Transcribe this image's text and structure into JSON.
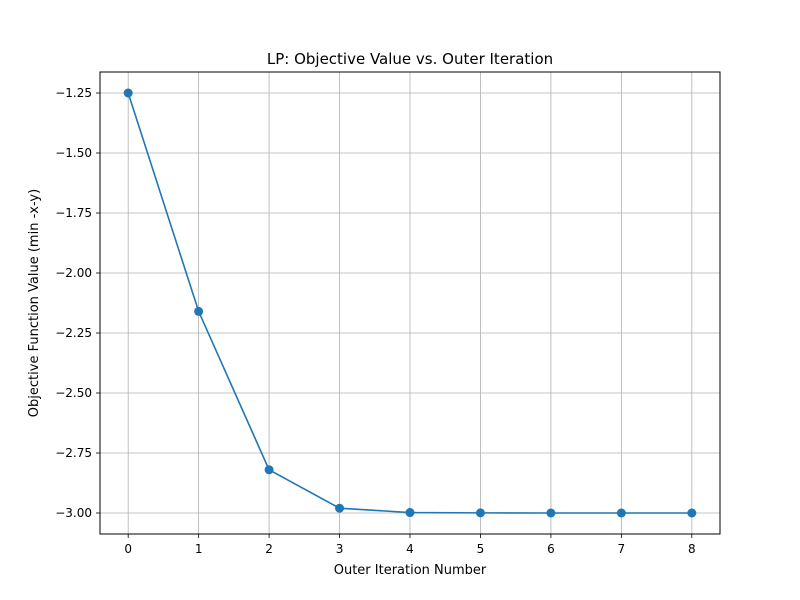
{
  "chart_data": {
    "type": "line",
    "title": "LP: Objective Value vs. Outer Iteration",
    "xlabel": "Outer Iteration Number",
    "ylabel": "Objective Function Value (min -x-y)",
    "x": [
      0,
      1,
      2,
      3,
      4,
      5,
      6,
      7,
      8
    ],
    "series": [
      {
        "values": [
          -1.25,
          -2.16,
          -2.82,
          -2.98,
          -2.998,
          -2.9995,
          -3.0,
          -3.0,
          -3.0
        ],
        "marker": "circle",
        "color": "#1f77b4"
      }
    ],
    "xticks": [
      "0",
      "1",
      "2",
      "3",
      "4",
      "5",
      "6",
      "7",
      "8"
    ],
    "yticks": [
      "−1.25",
      "−1.50",
      "−1.75",
      "−2.00",
      "−2.25",
      "−2.50",
      "−2.75",
      "−3.00"
    ],
    "ytick_values": [
      -1.25,
      -1.5,
      -1.75,
      -2.0,
      -2.25,
      -2.5,
      -2.75,
      -3.0
    ],
    "xlim": [
      -0.4,
      8.4
    ],
    "ylim": [
      -3.0875,
      -1.1625
    ],
    "grid": true
  }
}
